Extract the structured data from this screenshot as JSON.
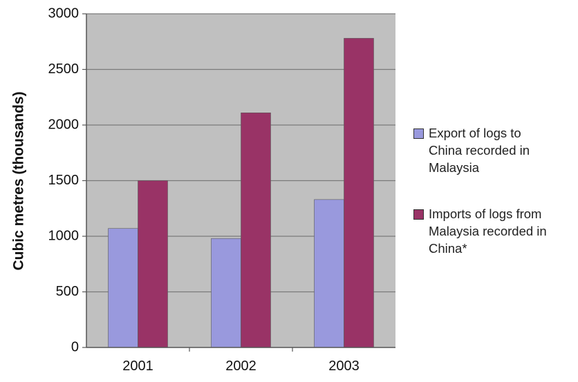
{
  "chart_data": {
    "type": "bar",
    "categories": [
      "2001",
      "2002",
      "2003"
    ],
    "series": [
      {
        "name": "Export of logs to China recorded in Malaysia",
        "values": [
          1070,
          980,
          1330
        ],
        "color": "#9999dd"
      },
      {
        "name": "Imports of logs from Malaysia recorded in China*",
        "values": [
          1500,
          2110,
          2780
        ],
        "color": "#993366"
      }
    ],
    "title": "",
    "xlabel": "",
    "ylabel": "Cubic metres (thousands)",
    "ylim": [
      0,
      3000
    ],
    "yticks": [
      "0",
      "500",
      "1000",
      "1500",
      "2000",
      "2500",
      "3000"
    ],
    "grid": true,
    "plot_background": "#c0c0c0",
    "legend_position": "right"
  },
  "legend": {
    "items": [
      {
        "lines": [
          "Export of logs to",
          "China recorded in",
          "Malaysia"
        ],
        "color": "#9999dd"
      },
      {
        "lines": [
          "Imports of logs from",
          "Malaysia recorded in",
          "China*"
        ],
        "color": "#993366"
      }
    ]
  }
}
